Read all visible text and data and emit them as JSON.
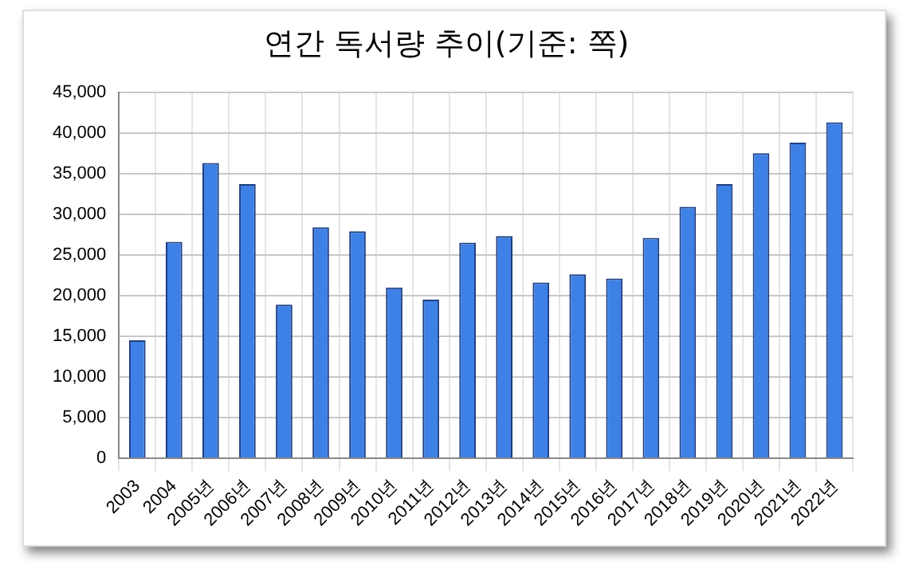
{
  "chart_data": {
    "type": "bar",
    "title": "연간 독서량 추이(기준: 쪽)",
    "categories": [
      "2003",
      "2004",
      "2005년",
      "2006년",
      "2007년",
      "2008년",
      "2009년",
      "2010년",
      "2011년",
      "2012년",
      "2013년",
      "2014년",
      "2015년",
      "2016년",
      "2017년",
      "2018년",
      "2019년",
      "2020년",
      "2021년",
      "2022년"
    ],
    "values": [
      14500,
      26600,
      36300,
      33700,
      18900,
      28400,
      27900,
      21000,
      19500,
      26500,
      27300,
      21600,
      22600,
      22100,
      27100,
      30900,
      33700,
      37500,
      38800,
      41300
    ],
    "color": "#3d80e6",
    "ylim": [
      0,
      45000
    ],
    "yticks": [
      {
        "value": 0,
        "label": "0"
      },
      {
        "value": 5000,
        "label": "5,000"
      },
      {
        "value": 10000,
        "label": "10,000"
      },
      {
        "value": 15000,
        "label": "15,000"
      },
      {
        "value": 20000,
        "label": "20,000"
      },
      {
        "value": 25000,
        "label": "25,000"
      },
      {
        "value": 30000,
        "label": "30,000"
      },
      {
        "value": 35000,
        "label": "35,000"
      },
      {
        "value": 40000,
        "label": "40,000"
      },
      {
        "value": 45000,
        "label": "45,000"
      }
    ],
    "grid": true,
    "legend": false
  }
}
